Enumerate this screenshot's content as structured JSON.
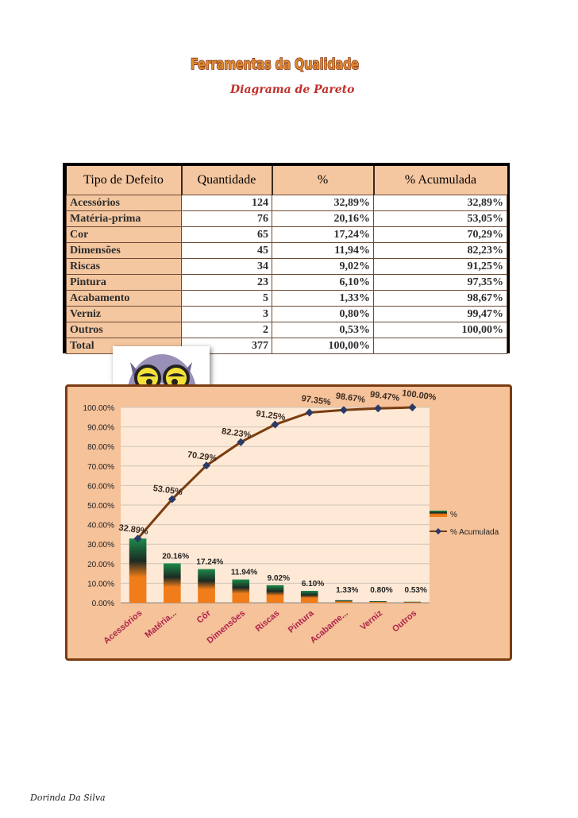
{
  "header": {
    "wordart_title": "Ferramentas da Qualidade",
    "subtitle": "Diagrama de Pareto"
  },
  "table": {
    "columns": [
      "Tipo de Defeito",
      "Quantidade",
      "%",
      "% Acumulada"
    ],
    "rows": [
      {
        "tipo": "Acessórios",
        "qtd": "124",
        "pct": "32,89%",
        "acum": "32,89%"
      },
      {
        "tipo": "Matéria-prima",
        "qtd": "76",
        "pct": "20,16%",
        "acum": "53,05%"
      },
      {
        "tipo": "Cor",
        "qtd": "65",
        "pct": "17,24%",
        "acum": "70,29%"
      },
      {
        "tipo": "Dimensões",
        "qtd": "45",
        "pct": "11,94%",
        "acum": "82,23%"
      },
      {
        "tipo": "Riscas",
        "qtd": "34",
        "pct": "9,02%",
        "acum": "91,25%"
      },
      {
        "tipo": "Pintura",
        "qtd": "23",
        "pct": "6,10%",
        "acum": "97,35%"
      },
      {
        "tipo": "Acabamento",
        "qtd": "5",
        "pct": "1,33%",
        "acum": "98,67%"
      },
      {
        "tipo": "Verniz",
        "qtd": "3",
        "pct": "0,80%",
        "acum": "99,47%"
      },
      {
        "tipo": "Outros",
        "qtd": "2",
        "pct": "0,53%",
        "acum": "100,00%"
      }
    ],
    "total": {
      "tipo": "Total",
      "qtd": "377",
      "pct": "100,00%",
      "acum": ""
    }
  },
  "chart_data": {
    "type": "bar",
    "categories": [
      "Acessórios",
      "Matéria...",
      "Côr",
      "Dimensões",
      "Riscas",
      "Pintura",
      "Acabame...",
      "Verniz",
      "Outros"
    ],
    "series": [
      {
        "name": "%",
        "type": "bar",
        "values": [
          32.89,
          20.16,
          17.24,
          11.94,
          9.02,
          6.1,
          1.33,
          0.8,
          0.53
        ],
        "labels": [
          "32.89%",
          "20.16%",
          "17.24%",
          "11.94%",
          "9.02%",
          "6.10%",
          "1.33%",
          "0.80%",
          "0.53%"
        ]
      },
      {
        "name": "% Acumulada",
        "type": "line",
        "values": [
          32.89,
          53.05,
          70.29,
          82.23,
          91.25,
          97.35,
          98.67,
          99.47,
          100.0
        ],
        "labels": [
          "32.89%",
          "53.05%",
          "70.29%",
          "82.23%",
          "91.25%",
          "97.35%",
          "98.67%",
          "99.47%",
          "100.00%"
        ]
      }
    ],
    "yticks": [
      "0.00%",
      "10.00%",
      "20.00%",
      "30.00%",
      "40.00%",
      "50.00%",
      "60.00%",
      "70.00%",
      "80.00%",
      "90.00%",
      "100.00%"
    ],
    "ylim": [
      0,
      100
    ],
    "legend_position": "right",
    "colors": {
      "bar_top": "#1e8a4a",
      "bar_mid": "#1b2a22",
      "bar_bottom": "#f07c1a",
      "line": "#7a3c10",
      "marker": "#2a3a66",
      "label": "#3a2a20"
    }
  },
  "footer": {
    "author": "Dorinda Da Silva"
  }
}
